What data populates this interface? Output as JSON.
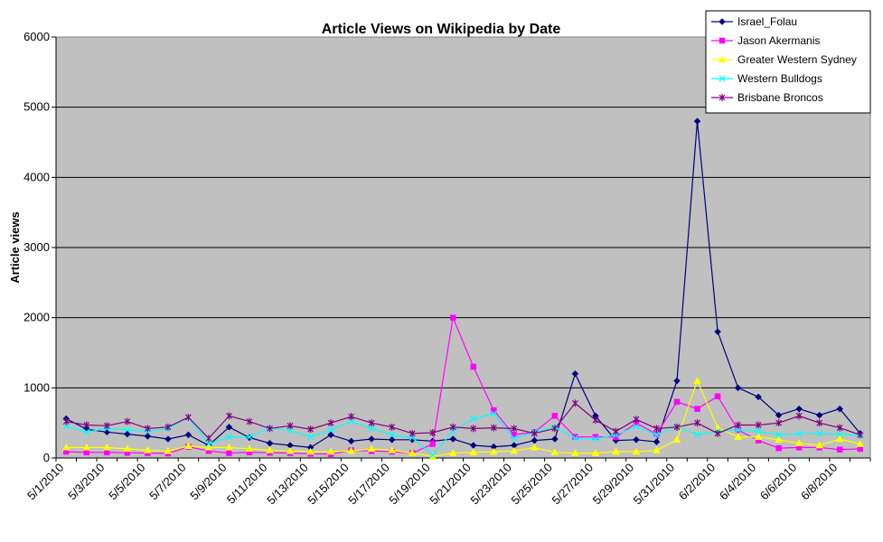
{
  "chart_data": {
    "type": "line",
    "title": "Article Views on Wikipedia by Date",
    "xlabel": "",
    "ylabel": "Article views",
    "ylim": [
      0,
      6000
    ],
    "yticks": [
      0,
      1000,
      2000,
      3000,
      4000,
      5000,
      6000
    ],
    "grid": true,
    "legend_position": "top-right",
    "plot_background": "#C0C0C0",
    "x": [
      "5/1/2010",
      "5/2/2010",
      "5/3/2010",
      "5/4/2010",
      "5/5/2010",
      "5/6/2010",
      "5/7/2010",
      "5/8/2010",
      "5/9/2010",
      "5/10/2010",
      "5/11/2010",
      "5/12/2010",
      "5/13/2010",
      "5/14/2010",
      "5/15/2010",
      "5/16/2010",
      "5/17/2010",
      "5/18/2010",
      "5/19/2010",
      "5/20/2010",
      "5/21/2010",
      "5/22/2010",
      "5/23/2010",
      "5/24/2010",
      "5/25/2010",
      "5/26/2010",
      "5/27/2010",
      "5/28/2010",
      "5/29/2010",
      "5/30/2010",
      "5/31/2010",
      "6/1/2010",
      "6/2/2010",
      "6/3/2010",
      "6/4/2010",
      "6/5/2010",
      "6/6/2010",
      "6/7/2010",
      "6/8/2010",
      "6/9/2010"
    ],
    "xtick_labels": [
      "5/1/2010",
      "5/3/2010",
      "5/5/2010",
      "5/7/2010",
      "5/9/2010",
      "5/11/2010",
      "5/13/2010",
      "5/15/2010",
      "5/17/2010",
      "5/19/2010",
      "5/21/2010",
      "5/23/2010",
      "5/25/2010",
      "5/27/2010",
      "5/29/2010",
      "5/31/2010",
      "6/2/2010",
      "6/4/2010",
      "6/6/2010",
      "6/8/2010"
    ],
    "series": [
      {
        "name": "Israel_Folau",
        "color": "#000080",
        "marker": "diamond",
        "values": [
          560,
          410,
          370,
          340,
          310,
          270,
          330,
          180,
          440,
          290,
          210,
          180,
          150,
          330,
          240,
          270,
          260,
          260,
          240,
          270,
          180,
          160,
          180,
          250,
          270,
          1200,
          600,
          250,
          260,
          230,
          1100,
          4800,
          1800,
          1000,
          870,
          610,
          700,
          610,
          700,
          350
        ]
      },
      {
        "name": "Jason Akermanis",
        "color": "#FF00FF",
        "marker": "square",
        "values": [
          90,
          80,
          80,
          75,
          70,
          65,
          160,
          100,
          70,
          80,
          75,
          70,
          60,
          55,
          110,
          100,
          90,
          70,
          200,
          2000,
          1300,
          680,
          330,
          370,
          600,
          300,
          300,
          300,
          500,
          340,
          800,
          700,
          880,
          400,
          250,
          140,
          150,
          150,
          120,
          130
        ]
      },
      {
        "name": "Greater Western Sydney",
        "color": "#FFFF00",
        "marker": "triangle",
        "values": [
          150,
          150,
          150,
          130,
          110,
          100,
          170,
          150,
          150,
          130,
          110,
          100,
          90,
          90,
          100,
          130,
          110,
          70,
          20,
          70,
          80,
          90,
          100,
          150,
          80,
          70,
          70,
          90,
          90,
          110,
          260,
          1100,
          430,
          300,
          300,
          260,
          210,
          180,
          270,
          200
        ]
      },
      {
        "name": "Western Bulldogs",
        "color": "#00FFFF",
        "marker": "x",
        "values": [
          450,
          370,
          420,
          400,
          380,
          420,
          580,
          200,
          300,
          300,
          430,
          390,
          300,
          400,
          520,
          420,
          330,
          290,
          40,
          380,
          560,
          630,
          280,
          370,
          440,
          280,
          270,
          330,
          450,
          330,
          450,
          330,
          380,
          400,
          380,
          330,
          350,
          350,
          340,
          320
        ]
      },
      {
        "name": "Brisbane Broncos",
        "color": "#800080",
        "marker": "star",
        "values": [
          520,
          470,
          460,
          520,
          420,
          440,
          580,
          280,
          600,
          520,
          420,
          460,
          410,
          500,
          590,
          500,
          440,
          350,
          360,
          440,
          420,
          430,
          420,
          350,
          420,
          780,
          540,
          380,
          550,
          420,
          440,
          500,
          350,
          470,
          470,
          500,
          600,
          500,
          430,
          330
        ]
      }
    ]
  }
}
